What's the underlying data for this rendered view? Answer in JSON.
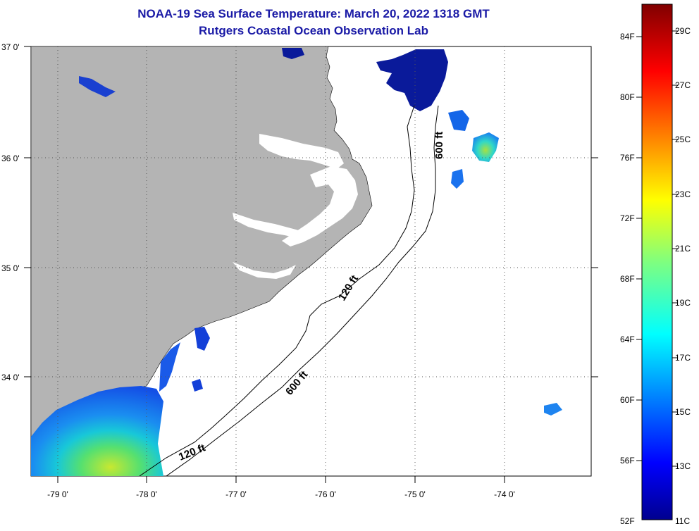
{
  "title": {
    "line1": "NOAA-19 Sea Surface Temperature:  March 20, 2022 1318 GMT",
    "line2": "Rutgers Coastal Ocean Observation Lab"
  },
  "axes": {
    "lon_labels": [
      "-79 0'",
      "-78 0'",
      "-77 0'",
      "-76 0'",
      "-75 0'",
      "-74 0'"
    ],
    "lat_labels": [
      "37 0'",
      "36 0'",
      "35 0'",
      "34 0'"
    ]
  },
  "contours": {
    "c120": "120 ft",
    "c600": "600 ft"
  },
  "colorbar": {
    "f_labels": [
      "84F",
      "80F",
      "76F",
      "72F",
      "68F",
      "64F",
      "60F",
      "56F",
      "52F"
    ],
    "c_labels": [
      "29C",
      "27C",
      "25C",
      "23C",
      "21C",
      "19C",
      "17C",
      "15C",
      "13C",
      "11C"
    ]
  },
  "colors": {
    "land": "#b4b4b4",
    "title": "#1a1aa6"
  }
}
